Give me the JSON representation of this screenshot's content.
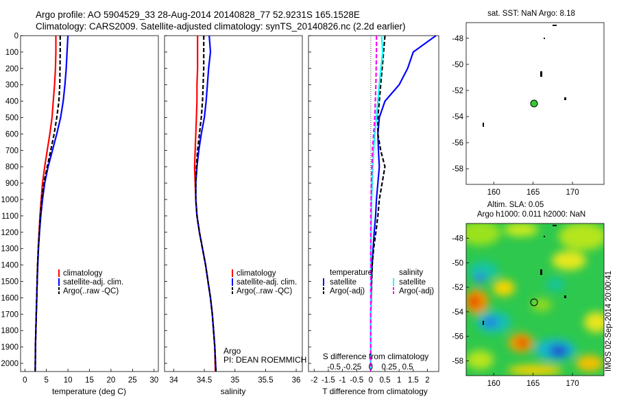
{
  "header": {
    "title_line1": "Argo profile: AO 5904529_33 28-Aug-2014 20140828_77 52.9231S 165.1528E",
    "title_line2": "Climatology: CARS2009. Satellite-adjusted climatology: synTS_20140826.nc (2.2d earlier)"
  },
  "depth_axis": {
    "ticks": [
      0,
      100,
      200,
      300,
      400,
      500,
      600,
      700,
      800,
      900,
      1000,
      1100,
      1200,
      1300,
      1400,
      1500,
      1600,
      1700,
      1800,
      1900,
      2000
    ],
    "lim": [
      0,
      2050
    ]
  },
  "temp_panel": {
    "xlabel": "temperature (deg C)",
    "xticks": [
      0,
      5,
      10,
      15,
      20,
      25,
      30
    ],
    "xlim": [
      -1,
      31
    ],
    "legend": [
      "climatology",
      "satellite-adj. clim.",
      "Argo(..raw -QC)"
    ]
  },
  "sal_panel": {
    "xlabel": "salinity",
    "xticks": [
      "34",
      "34.5",
      "35",
      "35.5",
      "36"
    ],
    "xlim": [
      33.85,
      36.1
    ],
    "legend": [
      "climatology",
      "satellite-adj. clim.",
      "Argo(..raw -QC)"
    ],
    "float_label": "Argo",
    "pi_label": "PI: DEAN ROEMMICH"
  },
  "diff_panel": {
    "xlabel": "T difference from climatology",
    "xticks": [
      "-2",
      "-1.5",
      "-1",
      "-0.5",
      "0",
      "0.5",
      "1",
      "1.5",
      "2"
    ],
    "xlim": [
      -2.2,
      2.4
    ],
    "top_label": "S difference from climatology",
    "top_ticks": [
      "-0.5",
      "-0.25",
      "0",
      "0.25",
      "0.5"
    ],
    "legend_temp_title": "temperature",
    "legend_sal_title": "salinity",
    "legend_items": [
      "satellite",
      "Argo(-adj)",
      "satellite",
      "Argo(-adj)"
    ]
  },
  "map_sst": {
    "title": "sat. SST: NaN Argo: 8.18",
    "xticks": [
      "160",
      "165",
      "170"
    ],
    "yticks": [
      "-48",
      "-50",
      "-52",
      "-54",
      "-56",
      "-58"
    ],
    "xlim": [
      156.5,
      174
    ],
    "ylim": [
      -59.2,
      -46.8
    ]
  },
  "map_sla": {
    "title1": "Altim. SLA: 0.05",
    "title2": "Argo h1000: 0.011 h2000: NaN",
    "xticks": [
      "160",
      "165",
      "170"
    ],
    "yticks": [
      "-48",
      "-50",
      "-52",
      "-54",
      "-56",
      "-58"
    ],
    "side_label": "IMOS 02-Sep-2014 20:00:41"
  },
  "colors": {
    "climatology": "#ff0000",
    "satellite_clim": "#0000ff",
    "argo": "#000000",
    "sat_sal": "#00ffff",
    "argo_sal": "#ff00ff",
    "argo_marker": "#33cc33"
  },
  "chart_data": [
    {
      "type": "line",
      "title": "",
      "xlabel": "temperature (deg C)",
      "ylabel": "",
      "series": [
        {
          "name": "climatology",
          "x": [
            7.2,
            7.2,
            7.1,
            6.9,
            6.6,
            6.3,
            5.8,
            5.2,
            4.6,
            4.1,
            3.8,
            3.5,
            3.3,
            3.1,
            2.95,
            2.85,
            2.75,
            2.65,
            2.55,
            2.45,
            2.4
          ],
          "y": [
            0,
            100,
            200,
            300,
            400,
            500,
            600,
            700,
            800,
            900,
            1000,
            1100,
            1200,
            1300,
            1400,
            1500,
            1600,
            1700,
            1800,
            1900,
            2050
          ]
        },
        {
          "name": "satellite-adj. clim.",
          "x": [
            10,
            9.8,
            9.6,
            9.3,
            8.9,
            8.3,
            7.4,
            6.4,
            5.4,
            4.6,
            4.1,
            3.7,
            3.4,
            3.15,
            3.0,
            2.85,
            2.75,
            2.65,
            2.55,
            2.45,
            2.4
          ],
          "y": [
            0,
            100,
            200,
            300,
            400,
            500,
            600,
            700,
            800,
            900,
            1000,
            1100,
            1200,
            1300,
            1400,
            1500,
            1600,
            1700,
            1800,
            1900,
            2050
          ]
        },
        {
          "name": "Argo(..raw -QC)",
          "x": [
            8.2,
            8.2,
            8.15,
            8.1,
            7.9,
            7.4,
            6.8,
            6.0,
            5.2,
            4.4,
            3.9,
            3.6,
            3.35,
            3.1,
            2.95,
            2.85,
            2.75,
            2.65,
            2.55,
            2.45,
            2.4
          ],
          "y": [
            0,
            100,
            200,
            300,
            400,
            500,
            600,
            700,
            800,
            900,
            1000,
            1100,
            1200,
            1300,
            1400,
            1500,
            1600,
            1700,
            1800,
            1900,
            2050
          ]
        }
      ]
    },
    {
      "type": "line",
      "title": "",
      "xlabel": "salinity",
      "ylabel": "",
      "series": [
        {
          "name": "climatology",
          "x": [
            34.39,
            34.39,
            34.39,
            34.38,
            34.38,
            34.37,
            34.36,
            34.35,
            34.34,
            34.35,
            34.36,
            34.38,
            34.42,
            34.47,
            34.52,
            34.56,
            34.6,
            34.63,
            34.65,
            34.67,
            34.68
          ],
          "y": [
            0,
            100,
            200,
            300,
            400,
            500,
            600,
            700,
            800,
            900,
            1000,
            1100,
            1200,
            1300,
            1400,
            1500,
            1600,
            1700,
            1800,
            1900,
            2050
          ]
        },
        {
          "name": "satellite-adj. clim.",
          "x": [
            34.58,
            34.6,
            34.57,
            34.55,
            34.53,
            34.5,
            34.45,
            34.41,
            34.38,
            34.36,
            34.36,
            34.38,
            34.42,
            34.47,
            34.52,
            34.56,
            34.6,
            34.63,
            34.65,
            34.67,
            34.69
          ],
          "y": [
            0,
            100,
            200,
            300,
            400,
            500,
            600,
            700,
            800,
            900,
            1000,
            1100,
            1200,
            1300,
            1400,
            1500,
            1600,
            1700,
            1800,
            1900,
            2050
          ]
        },
        {
          "name": "Argo(..raw -QC)",
          "x": [
            34.49,
            34.49,
            34.49,
            34.48,
            34.47,
            34.45,
            34.42,
            34.39,
            34.37,
            34.36,
            34.36,
            34.38,
            34.42,
            34.47,
            34.52,
            34.56,
            34.6,
            34.63,
            34.65,
            34.67,
            34.69
          ],
          "y": [
            0,
            100,
            200,
            300,
            400,
            500,
            600,
            700,
            800,
            900,
            1000,
            1100,
            1200,
            1300,
            1400,
            1500,
            1600,
            1700,
            1800,
            1900,
            2050
          ]
        }
      ]
    },
    {
      "type": "line",
      "title": "",
      "xlabel": "T difference from climatology",
      "ylabel": "",
      "series": [
        {
          "name": "temperature satellite",
          "x": [
            2.3,
            1.5,
            1.3,
            1.0,
            0.5,
            0.3,
            0.25,
            0.27,
            0.3,
            0.25,
            0.2,
            0.17,
            0.12,
            0.08,
            0.05,
            0.02,
            0.01,
            0,
            0,
            0,
            0
          ],
          "y": [
            0,
            100,
            200,
            300,
            400,
            500,
            600,
            700,
            800,
            900,
            1000,
            1100,
            1200,
            1300,
            1400,
            1500,
            1600,
            1700,
            1800,
            1900,
            2050
          ]
        },
        {
          "name": "temperature Argo(-adj)",
          "x": [
            0.5,
            0.45,
            0.4,
            0.35,
            0.3,
            0.25,
            0.25,
            0.35,
            0.5,
            0.4,
            0.3,
            0.25,
            0.18,
            0.1,
            0.05,
            0.03,
            0.01,
            0,
            0,
            0,
            0
          ],
          "y": [
            0,
            100,
            200,
            300,
            400,
            500,
            600,
            700,
            800,
            900,
            1000,
            1100,
            1200,
            1300,
            1400,
            1500,
            1600,
            1700,
            1800,
            1900,
            2050
          ]
        },
        {
          "name": "salinity satellite",
          "x": [
            0.38,
            0.42,
            0.36,
            0.3,
            0.25,
            0.2,
            0.14,
            0.1,
            0.07,
            0.05,
            0.03,
            0.02,
            0.01,
            0,
            0,
            0,
            0,
            0,
            0,
            0,
            0
          ],
          "y": [
            0,
            100,
            200,
            300,
            400,
            500,
            600,
            700,
            800,
            900,
            1000,
            1100,
            1200,
            1300,
            1400,
            1500,
            1600,
            1700,
            1800,
            1900,
            2050
          ]
        },
        {
          "name": "salinity Argo(-adj)",
          "x": [
            0.2,
            0.2,
            0.19,
            0.18,
            0.16,
            0.14,
            0.1,
            0.06,
            0.04,
            0.02,
            0.01,
            0,
            0,
            0,
            0,
            0,
            0,
            0,
            0,
            0,
            0
          ],
          "y": [
            0,
            100,
            200,
            300,
            400,
            500,
            600,
            700,
            800,
            900,
            1000,
            1100,
            1200,
            1300,
            1400,
            1500,
            1600,
            1700,
            1800,
            1900,
            2050
          ]
        }
      ]
    },
    {
      "type": "scatter",
      "title": "sat. SST: NaN Argo: 8.18",
      "series": [
        {
          "name": "",
          "x": [
            165.15
          ],
          "y": [
            -52.92
          ]
        }
      ]
    }
  ]
}
